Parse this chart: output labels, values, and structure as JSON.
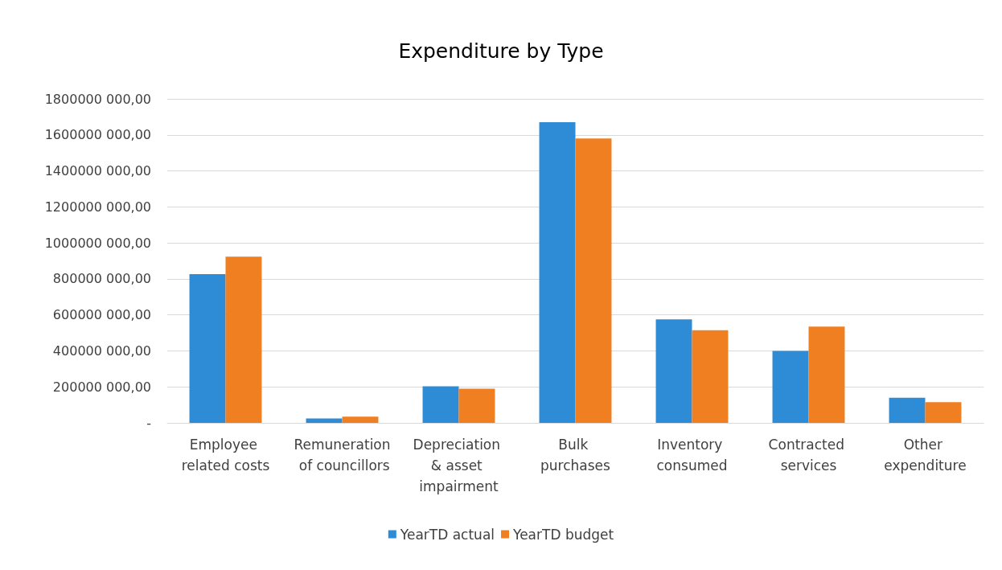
{
  "chart_data": {
    "type": "bar",
    "title": "Expenditure by Type",
    "categories": [
      "Employee related costs",
      "Remuneration of councillors",
      "Depreciation & asset impairment",
      "Bulk purchases",
      "Inventory consumed",
      "Contracted services",
      "Other expenditure"
    ],
    "series": [
      {
        "name": "YearTD actual",
        "color": "#2e8bd6",
        "values": [
          826000000,
          25000000,
          203000000,
          1670000000,
          575000000,
          400000000,
          140000000
        ]
      },
      {
        "name": "YearTD budget",
        "color": "#f07f22",
        "values": [
          924000000,
          35000000,
          190000000,
          1580000000,
          515000000,
          535000000,
          115000000
        ]
      }
    ],
    "ylim": [
      0,
      1800000000
    ],
    "yticks": [
      {
        "value": 0,
        "label": "-"
      },
      {
        "value": 200000000,
        "label": "200000 000,00"
      },
      {
        "value": 400000000,
        "label": "400000 000,00"
      },
      {
        "value": 600000000,
        "label": "600000 000,00"
      },
      {
        "value": 800000000,
        "label": "800000 000,00"
      },
      {
        "value": 1000000000,
        "label": "1000000 000,00"
      },
      {
        "value": 1200000000,
        "label": "1200000 000,00"
      },
      {
        "value": 1400000000,
        "label": "1400000 000,00"
      },
      {
        "value": 1600000000,
        "label": "1600000 000,00"
      },
      {
        "value": 1800000000,
        "label": "1800000 000,00"
      }
    ],
    "grid": "y",
    "legend": "bottom"
  }
}
